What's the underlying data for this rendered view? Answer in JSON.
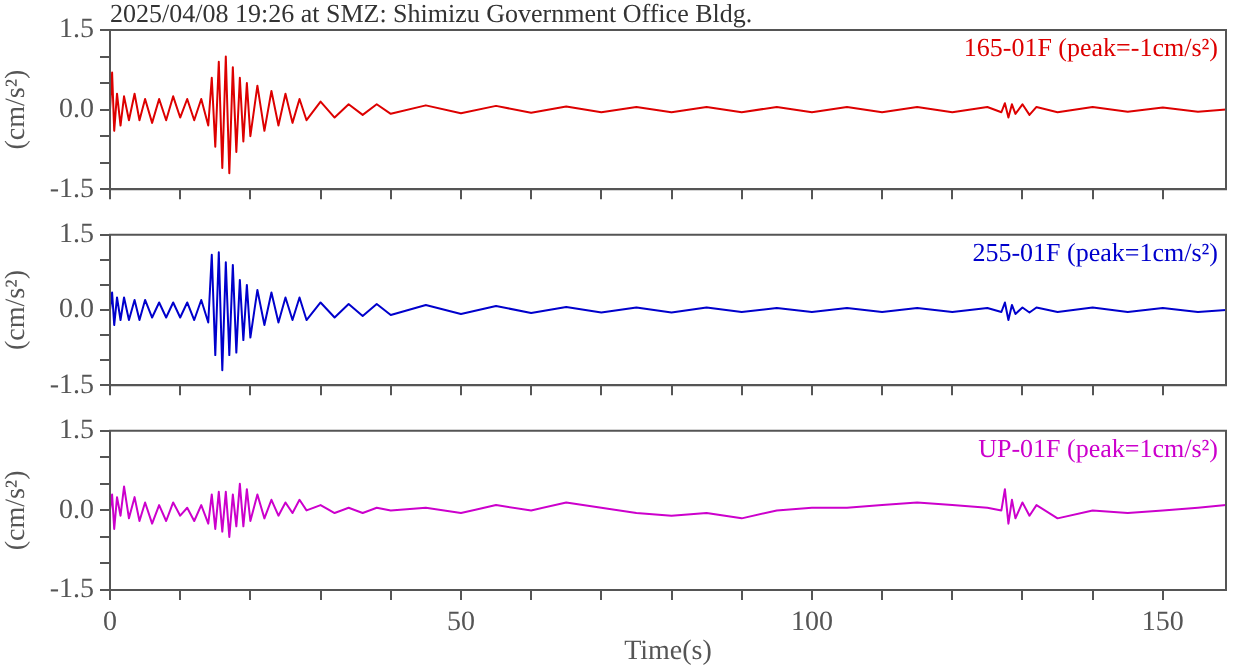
{
  "chart_data": [
    {
      "type": "line",
      "title": "2025/04/08 19:26 at SMZ: Shimizu Government Office Bldg.",
      "ylabel": "(cm/s²)",
      "xlim": [
        0,
        159
      ],
      "ylim": [
        -1.5,
        1.5
      ],
      "xticks": [
        0,
        {
          "value": 10,
          "label": null
        },
        {
          "value": 20,
          "label": null
        },
        {
          "value": 30,
          "label": null
        },
        {
          "value": 40,
          "label": null
        },
        50,
        {
          "value": 60,
          "label": null
        },
        {
          "value": 70,
          "label": null
        },
        {
          "value": 80,
          "label": null
        },
        {
          "value": 90,
          "label": null
        },
        100,
        {
          "value": 110,
          "label": null
        },
        {
          "value": 120,
          "label": null
        },
        {
          "value": 130,
          "label": null
        },
        {
          "value": 140,
          "label": null
        },
        150
      ],
      "yticks": [
        {
          "value": -1.5,
          "label": "-1.5"
        },
        {
          "value": -1,
          "label": null
        },
        {
          "value": -0.5,
          "label": null
        },
        {
          "value": 0,
          "label": "0.0"
        },
        {
          "value": 0.5,
          "label": null
        },
        {
          "value": 1,
          "label": null
        },
        {
          "value": 1.5,
          "label": "1.5"
        }
      ],
      "tick_labels": "y",
      "legend": "top right",
      "grid": false,
      "x": [
        0,
        0.3,
        0.6,
        1,
        1.5,
        2,
        2.7,
        3.5,
        4.2,
        5,
        6,
        7,
        8,
        9,
        10,
        11,
        12,
        13,
        14,
        14.5,
        15,
        15.5,
        16,
        16.5,
        17,
        17.5,
        18,
        18.5,
        19,
        19.5,
        20,
        21,
        22,
        23,
        24,
        25,
        26,
        27,
        28,
        30,
        32,
        34,
        36,
        38,
        40,
        45,
        50,
        55,
        60,
        65,
        70,
        75,
        80,
        85,
        90,
        95,
        100,
        105,
        110,
        115,
        120,
        125,
        127,
        127.5,
        128,
        128.5,
        129,
        130,
        131,
        132,
        135,
        140,
        145,
        150,
        155,
        159
      ],
      "series": [
        {
          "name": "165-01F (peak=-1cm/s²)",
          "color": "#dd0000",
          "values": [
            0,
            0.7,
            -0.4,
            0.3,
            -0.3,
            0.25,
            -0.2,
            0.3,
            -0.2,
            0.2,
            -0.25,
            0.2,
            -0.2,
            0.25,
            -0.15,
            0.2,
            -0.2,
            0.2,
            -0.3,
            0.6,
            -0.7,
            0.9,
            -1.1,
            1.0,
            -1.2,
            0.8,
            -0.8,
            0.6,
            -0.6,
            0.5,
            -0.5,
            0.45,
            -0.4,
            0.35,
            -0.3,
            0.3,
            -0.25,
            0.2,
            -0.2,
            0.15,
            -0.15,
            0.1,
            -0.1,
            0.1,
            -0.08,
            0.08,
            -0.07,
            0.07,
            -0.06,
            0.06,
            -0.05,
            0.05,
            -0.05,
            0.05,
            -0.05,
            0.05,
            -0.05,
            0.05,
            -0.05,
            0.05,
            -0.05,
            0.05,
            -0.05,
            0.12,
            -0.15,
            0.1,
            -0.08,
            0.1,
            -0.1,
            0.05,
            -0.05,
            0.05,
            -0.04,
            0.04,
            -0.04,
            0
          ]
        }
      ]
    },
    {
      "type": "line",
      "ylabel": "(cm/s²)",
      "xlim": [
        0,
        159
      ],
      "ylim": [
        -1.5,
        1.5
      ],
      "xticks": [
        0,
        {
          "value": 10,
          "label": null
        },
        {
          "value": 20,
          "label": null
        },
        {
          "value": 30,
          "label": null
        },
        {
          "value": 40,
          "label": null
        },
        50,
        {
          "value": 60,
          "label": null
        },
        {
          "value": 70,
          "label": null
        },
        {
          "value": 80,
          "label": null
        },
        {
          "value": 90,
          "label": null
        },
        100,
        {
          "value": 110,
          "label": null
        },
        {
          "value": 120,
          "label": null
        },
        {
          "value": 130,
          "label": null
        },
        {
          "value": 140,
          "label": null
        },
        150
      ],
      "yticks": [
        {
          "value": -1.5,
          "label": "-1.5"
        },
        {
          "value": -1,
          "label": null
        },
        {
          "value": -0.5,
          "label": null
        },
        {
          "value": 0,
          "label": "0.0"
        },
        {
          "value": 0.5,
          "label": null
        },
        {
          "value": 1,
          "label": null
        },
        {
          "value": 1.5,
          "label": "1.5"
        }
      ],
      "tick_labels": "y",
      "legend": "top right",
      "grid": false,
      "x": [
        0,
        0.3,
        0.6,
        1,
        1.5,
        2,
        2.7,
        3.5,
        4.2,
        5,
        6,
        7,
        8,
        9,
        10,
        11,
        12,
        13,
        14,
        14.5,
        15,
        15.5,
        16,
        16.5,
        17,
        17.5,
        18,
        18.5,
        19,
        19.5,
        20,
        21,
        22,
        23,
        24,
        25,
        26,
        27,
        28,
        30,
        32,
        34,
        36,
        38,
        40,
        45,
        50,
        55,
        60,
        65,
        70,
        75,
        80,
        85,
        90,
        95,
        100,
        105,
        110,
        115,
        120,
        125,
        127,
        127.5,
        128,
        128.5,
        129,
        130,
        131,
        132,
        135,
        140,
        145,
        150,
        155,
        159
      ],
      "series": [
        {
          "name": "255-01F (peak=1cm/s²)",
          "color": "#0000cc",
          "values": [
            0,
            0.35,
            -0.3,
            0.25,
            -0.2,
            0.25,
            -0.2,
            0.2,
            -0.2,
            0.2,
            -0.15,
            0.15,
            -0.15,
            0.15,
            -0.15,
            0.15,
            -0.2,
            0.2,
            -0.25,
            1.1,
            -0.9,
            1.15,
            -1.2,
            0.95,
            -0.9,
            0.9,
            -0.85,
            0.6,
            -0.6,
            0.5,
            -0.55,
            0.4,
            -0.3,
            0.35,
            -0.25,
            0.25,
            -0.2,
            0.25,
            -0.2,
            0.15,
            -0.15,
            0.12,
            -0.12,
            0.12,
            -0.1,
            0.1,
            -0.08,
            0.08,
            -0.06,
            0.06,
            -0.05,
            0.05,
            -0.05,
            0.05,
            -0.04,
            0.04,
            -0.04,
            0.04,
            -0.04,
            0.04,
            -0.04,
            0.04,
            -0.04,
            0.15,
            -0.2,
            0.1,
            -0.08,
            0.05,
            -0.05,
            0.05,
            -0.04,
            0.05,
            -0.04,
            0.04,
            -0.04,
            0
          ]
        }
      ]
    },
    {
      "type": "line",
      "xlabel": "Time(s)",
      "ylabel": "(cm/s²)",
      "xlim": [
        0,
        159
      ],
      "ylim": [
        -1.5,
        1.5
      ],
      "xticks": [
        0,
        {
          "value": 10,
          "label": null
        },
        {
          "value": 20,
          "label": null
        },
        {
          "value": 30,
          "label": null
        },
        {
          "value": 40,
          "label": null
        },
        50,
        {
          "value": 60,
          "label": null
        },
        {
          "value": 70,
          "label": null
        },
        {
          "value": 80,
          "label": null
        },
        {
          "value": 90,
          "label": null
        },
        100,
        {
          "value": 110,
          "label": null
        },
        {
          "value": 120,
          "label": null
        },
        {
          "value": 130,
          "label": null
        },
        {
          "value": 140,
          "label": null
        },
        150
      ],
      "yticks": [
        {
          "value": -1.5,
          "label": "-1.5"
        },
        {
          "value": -1,
          "label": null
        },
        {
          "value": -0.5,
          "label": null
        },
        {
          "value": 0,
          "label": "0.0"
        },
        {
          "value": 0.5,
          "label": null
        },
        {
          "value": 1,
          "label": null
        },
        {
          "value": 1.5,
          "label": "1.5"
        }
      ],
      "legend": "top right",
      "grid": false,
      "x": [
        0,
        0.3,
        0.6,
        1,
        1.5,
        2,
        2.7,
        3.5,
        4.2,
        5,
        6,
        7,
        8,
        9,
        10,
        11,
        12,
        13,
        14,
        14.5,
        15,
        15.5,
        16,
        16.5,
        17,
        17.5,
        18,
        18.5,
        19,
        19.5,
        20,
        21,
        22,
        23,
        24,
        25,
        26,
        27,
        28,
        30,
        32,
        34,
        36,
        38,
        40,
        45,
        50,
        55,
        60,
        65,
        70,
        75,
        80,
        85,
        90,
        95,
        100,
        105,
        110,
        115,
        120,
        125,
        127,
        127.5,
        128,
        128.5,
        129,
        130,
        131,
        132,
        135,
        140,
        145,
        150,
        155,
        159
      ],
      "series": [
        {
          "name": "UP-01F (peak=1cm/s²)",
          "color": "#cc00cc",
          "values": [
            0,
            0.3,
            -0.35,
            0.25,
            -0.1,
            0.45,
            -0.15,
            0.25,
            -0.2,
            0.15,
            -0.25,
            0.1,
            -0.2,
            0.15,
            -0.1,
            0.05,
            -0.2,
            0.1,
            -0.25,
            0.3,
            -0.35,
            0.35,
            -0.4,
            0.35,
            -0.5,
            0.3,
            -0.3,
            0.5,
            -0.3,
            0.4,
            -0.2,
            0.3,
            -0.15,
            0.2,
            -0.1,
            0.15,
            -0.05,
            0.2,
            0.0,
            0.1,
            -0.05,
            0.05,
            -0.05,
            0.05,
            0.0,
            0.05,
            -0.05,
            0.1,
            0.0,
            0.15,
            0.05,
            -0.05,
            -0.1,
            -0.05,
            -0.15,
            0.0,
            0.05,
            0.05,
            0.1,
            0.15,
            0.1,
            0.05,
            0.0,
            0.4,
            -0.25,
            0.2,
            -0.15,
            0.15,
            -0.1,
            0.1,
            -0.15,
            0.0,
            -0.05,
            0.0,
            0.05,
            0.1
          ]
        }
      ]
    }
  ]
}
